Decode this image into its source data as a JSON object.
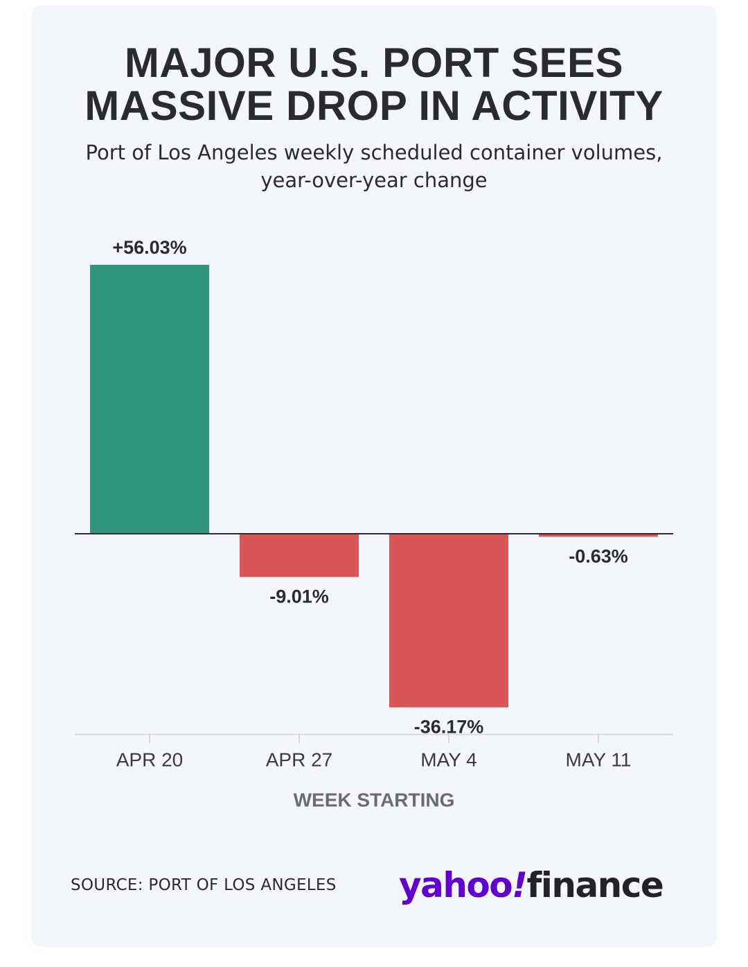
{
  "header": {
    "title_line1": "MAJOR U.S. PORT SEES",
    "title_line2": "MASSIVE DROP IN ACTIVITY",
    "subtitle_line1": "Port of Los Angeles weekly scheduled container volumes,",
    "subtitle_line2": "year-over-year change"
  },
  "footer": {
    "source": "SOURCE: PORT OF LOS ANGELES",
    "logo_yahoo": "yahoo",
    "logo_mark": "!",
    "logo_finance": "finance"
  },
  "colors": {
    "positive": "#319481",
    "negative": "#d85656",
    "zero_line": "#2b2b2f",
    "axis": "#d7d9dd"
  },
  "chart_data": {
    "type": "bar",
    "categories": [
      "APR 20",
      "APR 27",
      "MAY 4",
      "MAY 11"
    ],
    "values": [
      56.03,
      -9.01,
      -36.17,
      -0.63
    ],
    "value_labels": [
      "+56.03%",
      "-9.01%",
      "-36.17%",
      "-0.63%"
    ],
    "title": "MAJOR U.S. PORT SEES MASSIVE DROP IN ACTIVITY",
    "subtitle": "Port of Los Angeles weekly scheduled container volumes, year-over-year change",
    "xlabel": "WEEK STARTING",
    "ylabel": "",
    "ylim": [
      -41.8,
      56.03
    ],
    "grid": false,
    "legend": "none"
  }
}
